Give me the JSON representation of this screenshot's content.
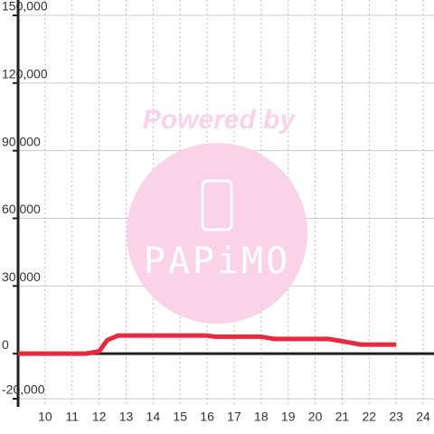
{
  "chart_data": {
    "type": "line",
    "watermark": [
      "Powered by",
      "PAPiMO"
    ],
    "x": [
      9,
      11.5,
      12,
      12.3,
      12.7,
      16,
      16.3,
      18,
      18.5,
      20.5,
      21,
      21.7,
      23
    ],
    "series": [
      {
        "color": "#e8293e",
        "values": [
          0,
          0,
          1000,
          6000,
          8000,
          8000,
          7500,
          7500,
          6500,
          6500,
          5500,
          4000,
          4000
        ]
      }
    ],
    "xlim": [
      9,
      24.4
    ],
    "xticks": [
      10,
      11,
      12,
      13,
      14,
      15,
      16,
      17,
      18,
      19,
      20,
      21,
      22,
      23,
      24
    ],
    "ylim": [
      -20000,
      150000
    ],
    "yticks": [
      {
        "value": -20000,
        "label": "-20,000"
      },
      0,
      {
        "value": 30000,
        "label": "30,000"
      },
      {
        "value": 60000,
        "label": "60,000"
      },
      {
        "value": 90000,
        "label": "90,000"
      },
      {
        "value": 120000,
        "label": "120,000"
      },
      {
        "value": 150000,
        "label": "150,000"
      }
    ],
    "grid": true
  }
}
